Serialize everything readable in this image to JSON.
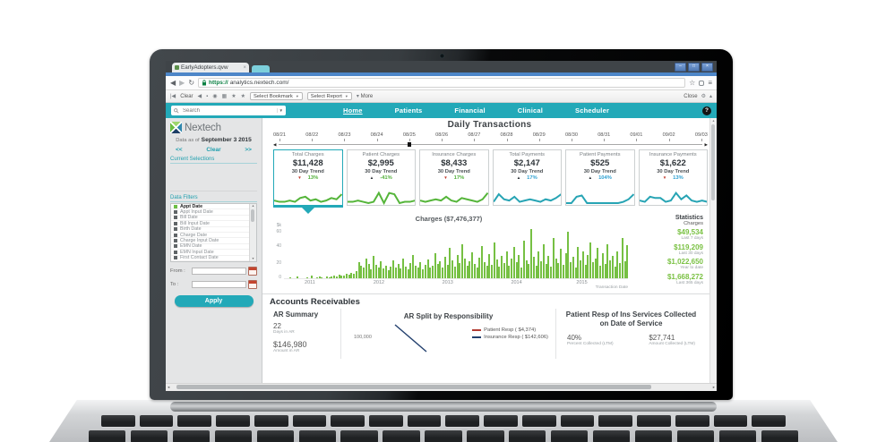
{
  "colors": {
    "teal": "#23a9b8",
    "bar_green": "#76c043",
    "spark_green": "#55b53a",
    "spark_teal": "#27a4b4",
    "pct_green": "#4fae38",
    "pct_blue": "#2b9fd1",
    "stat_green": "#7ac143",
    "red": "#c23b2e",
    "navy": "#23406e"
  },
  "icons": {
    "back": "◀",
    "forward": "▶",
    "reload": "↻",
    "star_outline": "☆",
    "menu": "≡",
    "first": "|◀",
    "lock_small": "▪",
    "globe": "◉",
    "grid": "▦",
    "star": "★",
    "dropdown": "▼",
    "caret_down": "▾",
    "caret_up": "▴",
    "gear": "⚙",
    "win_min": "–",
    "win_max": "□",
    "win_close": "×",
    "scroll_up": "▲",
    "scroll_down": "▼",
    "scroll_left": "◂",
    "scroll_right": "▸",
    "slider_left": "◀",
    "slider_right": "▶",
    "arrow_up": "▲",
    "arrow_down": "▼"
  },
  "browser": {
    "tab_title": "EarlyAdopters.qvw",
    "tab_close": "×",
    "url_scheme": "https://",
    "url_rest": "analytics.nextech.com/",
    "toolbar": {
      "clear": "Clear",
      "select_bookmark": "Select Bookmark",
      "select_report": "Select Report",
      "more": "More",
      "close": "Close"
    }
  },
  "nav": {
    "search_placeholder": "Search",
    "items": [
      {
        "label": "Home",
        "active": true
      },
      {
        "label": "Patients",
        "active": false
      },
      {
        "label": "Financial",
        "active": false
      },
      {
        "label": "Clinical",
        "active": false
      },
      {
        "label": "Scheduler",
        "active": false
      }
    ],
    "help_label": "?"
  },
  "sidebar": {
    "logo_text": "Nextech",
    "data_as_of_label": "Data as of",
    "data_as_of_value": "September 3 2015",
    "pager_prev": "<<",
    "pager_clear": "Clear",
    "pager_next": ">>",
    "current_selections_label": "Current Selections",
    "data_filters_label": "Data Filters",
    "filters": [
      {
        "label": "Appt Date",
        "selected": true
      },
      {
        "label": "Appt Input Date",
        "selected": false
      },
      {
        "label": "Bill Date",
        "selected": false
      },
      {
        "label": "Bill Input Date",
        "selected": false
      },
      {
        "label": "Birth Date",
        "selected": false
      },
      {
        "label": "Charge Date",
        "selected": false
      },
      {
        "label": "Charge Input Date",
        "selected": false
      },
      {
        "label": "EMN Date",
        "selected": false
      },
      {
        "label": "EMN Input Date",
        "selected": false
      },
      {
        "label": "First Contact Date",
        "selected": false
      }
    ],
    "from_label": "From :",
    "to_label": "To :",
    "apply_label": "Apply"
  },
  "main": {
    "title": "Daily Transactions",
    "dates": [
      "08/21",
      "08/22",
      "08/23",
      "08/24",
      "08/25",
      "08/26",
      "08/27",
      "08/28",
      "08/29",
      "08/30",
      "08/31",
      "09/01",
      "09/02",
      "09/03"
    ],
    "slider_position_pct": 31,
    "cards": [
      {
        "title": "Total Charges",
        "value": "$11,428",
        "trend_label": "30 Day Trend",
        "direction": "down",
        "pct": "13%",
        "pct_color": "green",
        "spark_color": "green",
        "selected": true,
        "spark": [
          3,
          2,
          2,
          3,
          2,
          5,
          6,
          3,
          4,
          2,
          3,
          5,
          4,
          8
        ]
      },
      {
        "title": "Patient Charges",
        "value": "$2,995",
        "trend_label": "30 Day Trend",
        "direction": "up",
        "pct": "-41%",
        "pct_color": "green",
        "spark_color": "green",
        "selected": false,
        "spark": [
          2,
          2,
          3,
          2,
          1,
          2,
          9,
          1,
          9,
          8,
          1,
          2,
          2,
          3
        ]
      },
      {
        "title": "Insurance Charges",
        "value": "$8,433",
        "trend_label": "30 Day Trend",
        "direction": "down",
        "pct": "17%",
        "pct_color": "green",
        "spark_color": "green",
        "selected": false,
        "spark": [
          3,
          2,
          3,
          4,
          3,
          6,
          3,
          2,
          5,
          4,
          3,
          2,
          4,
          9
        ]
      },
      {
        "title": "Total Payments",
        "value": "$2,147",
        "trend_label": "30 Day Trend",
        "direction": "up",
        "pct": "17%",
        "pct_color": "blue",
        "spark_color": "teal",
        "selected": false,
        "spark": [
          2,
          8,
          4,
          3,
          6,
          2,
          3,
          4,
          3,
          2,
          4,
          3,
          5,
          8
        ]
      },
      {
        "title": "Patient Payments",
        "value": "$525",
        "trend_label": "30 Day Trend",
        "direction": "up",
        "pct": "104%",
        "pct_color": "blue",
        "spark_color": "teal",
        "selected": false,
        "spark": [
          1,
          1,
          6,
          7,
          1,
          1,
          1,
          1,
          1,
          1,
          1,
          2,
          4,
          8
        ]
      },
      {
        "title": "Insurance Payments",
        "value": "$1,622",
        "trend_label": "30 Day Trend",
        "direction": "down",
        "pct": "13%",
        "pct_color": "blue",
        "spark_color": "teal",
        "selected": false,
        "spark": [
          3,
          2,
          6,
          5,
          5,
          2,
          3,
          9,
          4,
          7,
          3,
          2,
          3,
          2
        ]
      }
    ],
    "chart_title": "Charges ($7,476,377)",
    "y_unit": "$k",
    "y_ticks": [
      "60",
      "40",
      "20",
      "0"
    ],
    "x_ticks": [
      "2011",
      "2012",
      "2013",
      "2014",
      "2015"
    ],
    "x_axis_label": "Transaction Date",
    "statistics": {
      "title": "Statistics",
      "subtitle": "Charges",
      "items": [
        {
          "value": "$49,534",
          "label": "Last 7 days"
        },
        {
          "value": "$119,209",
          "label": "Last 30 days"
        },
        {
          "value": "$1,022,650",
          "label": "Year to date"
        },
        {
          "value": "$1,668,272",
          "label": "Last 365 days"
        }
      ]
    },
    "ar": {
      "heading": "Accounts Receivables",
      "summary": {
        "title": "AR Summary",
        "days_value": "22",
        "days_label": "Days in AR",
        "amount_value": "$146,980",
        "amount_label": "Amount in AR"
      },
      "split": {
        "title": "AR Split by Responsibility",
        "y_tick": "100,000",
        "legend": [
          {
            "label": "Patient Resp ( $4,374)",
            "color": "#b23a32"
          },
          {
            "label": "Insurance Resp ( $142,606)",
            "color": "#23406e"
          }
        ]
      },
      "collected": {
        "title": "Patient Resp of Ins Services Collected on Date of Service",
        "pct_value": "40%",
        "pct_label": "Percent Collected (LTM)",
        "amount_value": "$27,741",
        "amount_label": "Amount Collected (LTM)"
      }
    }
  },
  "chart_data": [
    {
      "type": "bar",
      "title": "Charges ($7,476,377)",
      "xlabel": "Transaction Date",
      "ylabel": "$k",
      "ylim": [
        0,
        60
      ],
      "x_ticks": [
        "2011",
        "2012",
        "2013",
        "2014",
        "2015"
      ],
      "values": [
        0,
        0,
        1,
        0,
        0,
        2,
        0,
        0,
        0,
        1,
        0,
        3,
        0,
        1,
        2,
        1,
        0,
        2,
        1,
        2,
        3,
        2,
        4,
        3,
        3,
        5,
        4,
        6,
        5,
        8,
        18,
        14,
        12,
        22,
        16,
        10,
        25,
        15,
        12,
        19,
        11,
        14,
        9,
        13,
        20,
        12,
        16,
        11,
        22,
        13,
        10,
        17,
        26,
        14,
        12,
        18,
        10,
        15,
        21,
        12,
        14,
        28,
        16,
        19,
        12,
        24,
        15,
        34,
        20,
        13,
        26,
        17,
        38,
        22,
        14,
        19,
        29,
        16,
        12,
        23,
        36,
        18,
        14,
        27,
        15,
        40,
        21,
        13,
        25,
        17,
        30,
        14,
        22,
        35,
        18,
        26,
        12,
        42,
        20,
        16,
        55,
        24,
        14,
        30,
        19,
        38,
        16,
        25,
        13,
        45,
        22,
        17,
        33,
        15,
        28,
        52,
        18,
        24,
        12,
        35,
        20,
        30,
        15,
        26,
        40,
        18,
        22,
        34,
        14,
        28,
        16,
        38,
        20,
        25,
        13,
        30,
        17,
        45,
        19,
        37
      ]
    },
    {
      "type": "line",
      "title": "AR Split by Responsibility",
      "legend_position": "right",
      "y_tick_visible": "100,000",
      "series": [
        {
          "name": "Patient Resp ( $4,374)",
          "color": "#b23a32",
          "values": []
        },
        {
          "name": "Insurance Resp ( $142,606)",
          "color": "#23406e",
          "values": [
            170000,
            100000
          ]
        }
      ]
    }
  ]
}
